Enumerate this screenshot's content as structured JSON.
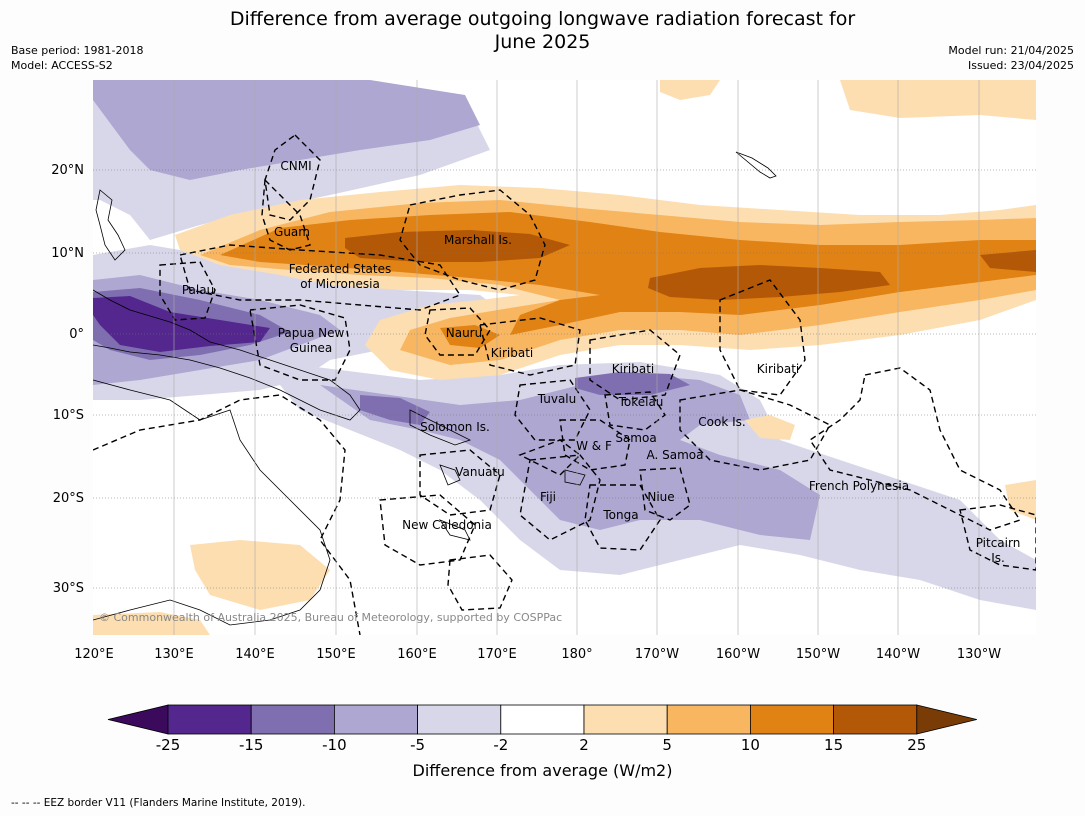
{
  "title": {
    "line1": "Difference from average outgoing longwave radiation forecast for",
    "line2": "June 2025"
  },
  "meta": {
    "base_period": "Base period: 1981-2018",
    "model": "Model: ACCESS-S2",
    "model_run": "Model run: 21/04/2025",
    "issued": "Issued: 23/04/2025"
  },
  "map": {
    "lat_labels": [
      "20°N",
      "10°N",
      "0°",
      "10°S",
      "20°S",
      "30°S"
    ],
    "lon_labels": [
      "120°E",
      "130°E",
      "140°E",
      "150°E",
      "160°E",
      "170°E",
      "180°",
      "170°W",
      "160°W",
      "150°W",
      "140°W",
      "130°W"
    ],
    "places": {
      "cnmi": "CNMI",
      "guam": "Guam",
      "marshall": "Marshall Is.",
      "fsm1": "Federated States",
      "fsm2": "of Micronesia",
      "palau": "Palau",
      "png1": "Papua New",
      "png2": "Guinea",
      "nauru": "Nauru",
      "kiribati_w": "Kiribati",
      "kiribati_c": "Kiribati",
      "kiribati_e": "Kiribati",
      "tuvalu": "Tuvalu",
      "tokelau": "Tokelau",
      "solomon": "Solomon Is.",
      "samoa": "Samoa",
      "wf": "W & F",
      "asamoa": "A. Samoa",
      "cook": "Cook Is.",
      "vanuatu": "Vanuatu",
      "fiji": "Fiji",
      "niue": "Niue",
      "tonga": "Tonga",
      "french_polynesia": "French Polynesia",
      "new_caledonia": "New Caledonia",
      "pitcairn1": "Pitcairn",
      "pitcairn2": "Is."
    },
    "copyright": "© Commonwealth of Australia 2025, Bureau of Meteorology, supported by COSPPac"
  },
  "colorbar": {
    "labels": [
      "-25",
      "-15",
      "-10",
      "-5",
      "-2",
      "2",
      "5",
      "10",
      "15",
      "25"
    ],
    "colors": [
      "#3b0a5c",
      "#54278f",
      "#7f6fb0",
      "#ada7d1",
      "#d8d7ea",
      "#ffffff",
      "#fddeb1",
      "#f9b660",
      "#e08214",
      "#b35806",
      "#7a3c06"
    ],
    "title": "Difference from average (W/m2)"
  },
  "footnote": "--  --  -- EEZ border V11 (Flanders Marine Institute, 2019)."
}
